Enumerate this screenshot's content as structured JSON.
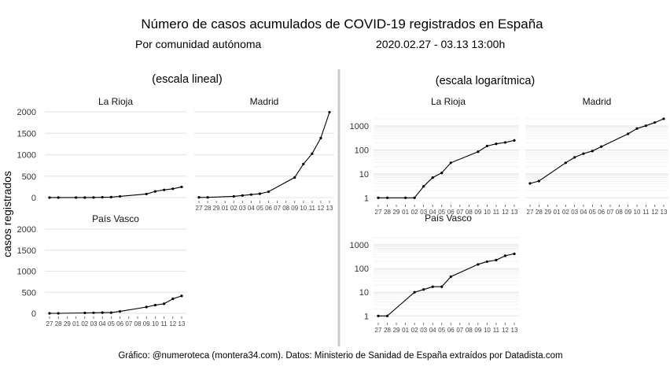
{
  "header": {
    "title": "Número de casos acumulados de COVID-19 registrados en España",
    "subtitle_left": "Por comunidad autónoma",
    "subtitle_right": "2020.02.27 - 03.13 13:00h"
  },
  "caption": "Gráfico: @numeroteca (montera34.com). Datos: Ministerio de Sanidad de España extraídos por Datadista.com",
  "ylabel": "casos registrados",
  "x_tick_labels": [
    "27",
    "28",
    "29",
    "01",
    "02",
    "03",
    "04",
    "05",
    "06",
    "07",
    "08",
    "09",
    "10",
    "11",
    "12",
    "13"
  ],
  "colors": {
    "line": "#000000",
    "grid": "#e6e6e6",
    "divider": "#cccccc"
  },
  "sections": {
    "linear": {
      "title": "(escala lineal)"
    },
    "log": {
      "title": "(escala logarítmica)"
    }
  },
  "chart_data": [
    {
      "type": "line",
      "scale": "linear",
      "region": "La Rioja",
      "x": [
        "02-27",
        "02-28",
        "03-01",
        "03-02",
        "03-03",
        "03-04",
        "03-05",
        "03-06",
        "03-09",
        "03-10",
        "03-11",
        "03-12",
        "03-13"
      ],
      "values": [
        1,
        1,
        1,
        1,
        3,
        7,
        11,
        29,
        84,
        145,
        179,
        205,
        249
      ],
      "ylim": [
        0,
        2000
      ],
      "yticks": [
        0,
        500,
        1000,
        1500,
        2000
      ]
    },
    {
      "type": "line",
      "scale": "linear",
      "region": "Madrid",
      "x": [
        "02-27",
        "02-28",
        "03-02",
        "03-03",
        "03-04",
        "03-05",
        "03-06",
        "03-09",
        "03-10",
        "03-11",
        "03-12",
        "03-13"
      ],
      "values": [
        4,
        5,
        29,
        49,
        70,
        90,
        137,
        469,
        782,
        1024,
        1388,
        1990
      ],
      "ylim": [
        0,
        2000
      ],
      "yticks": [
        0,
        500,
        1000,
        1500,
        2000
      ]
    },
    {
      "type": "line",
      "scale": "linear",
      "region": "País Vasco",
      "x": [
        "02-27",
        "02-28",
        "03-02",
        "03-03",
        "03-04",
        "03-05",
        "03-06",
        "03-09",
        "03-10",
        "03-11",
        "03-12",
        "03-13"
      ],
      "values": [
        0,
        0,
        10,
        13,
        17,
        17,
        45,
        149,
        195,
        226,
        344,
        414
      ],
      "ylim": [
        0,
        2000
      ],
      "yticks": [
        0,
        500,
        1000,
        1500,
        2000
      ]
    },
    {
      "type": "line",
      "scale": "log",
      "region": "La Rioja",
      "x": [
        "02-27",
        "02-28",
        "03-01",
        "03-02",
        "03-03",
        "03-04",
        "03-05",
        "03-06",
        "03-09",
        "03-10",
        "03-11",
        "03-12",
        "03-13"
      ],
      "values": [
        1,
        1,
        1,
        1,
        3,
        7,
        11,
        29,
        84,
        145,
        179,
        205,
        249
      ],
      "yticks": [
        1,
        10,
        100,
        1000
      ]
    },
    {
      "type": "line",
      "scale": "log",
      "region": "Madrid",
      "x": [
        "02-27",
        "02-28",
        "03-02",
        "03-03",
        "03-04",
        "03-05",
        "03-06",
        "03-09",
        "03-10",
        "03-11",
        "03-12",
        "03-13"
      ],
      "values": [
        4,
        5,
        29,
        49,
        70,
        90,
        137,
        469,
        782,
        1024,
        1388,
        1990
      ],
      "yticks": [
        1,
        10,
        100,
        1000
      ]
    },
    {
      "type": "line",
      "scale": "log",
      "region": "País Vasco",
      "x": [
        "02-27",
        "02-28",
        "03-02",
        "03-03",
        "03-04",
        "03-05",
        "03-06",
        "03-09",
        "03-10",
        "03-11",
        "03-12",
        "03-13"
      ],
      "values": [
        1,
        1,
        10,
        13,
        17,
        17,
        45,
        149,
        195,
        226,
        344,
        414
      ],
      "yticks": [
        1,
        10,
        100,
        1000
      ]
    }
  ]
}
